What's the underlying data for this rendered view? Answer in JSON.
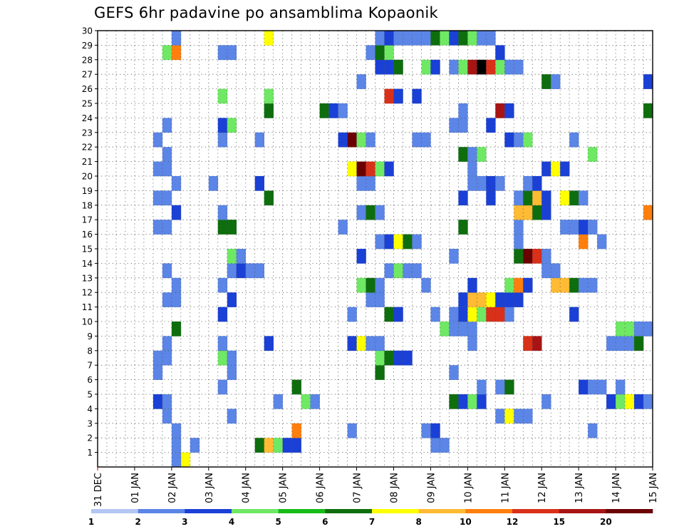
{
  "chart_data": {
    "type": "heatmap",
    "title": "GEFS 6hr padavine po ansamblima Kopaonik",
    "xlabel": "",
    "ylabel": "",
    "x_ticks": [
      "31 DEC",
      "01 JAN",
      "02 JAN",
      "03 JAN",
      "04 JAN",
      "05 JAN",
      "06 JAN",
      "07 JAN",
      "08 JAN",
      "09 JAN",
      "10 JAN",
      "11 JAN",
      "12 JAN",
      "13 JAN",
      "14 JAN",
      "15 JAN"
    ],
    "y_ticks": [
      1,
      2,
      3,
      4,
      5,
      6,
      7,
      8,
      9,
      10,
      11,
      12,
      13,
      14,
      15,
      16,
      17,
      18,
      19,
      20,
      21,
      22,
      23,
      24,
      25,
      26,
      27,
      28,
      29,
      30
    ],
    "xlim": [
      0,
      60
    ],
    "ylim": [
      0,
      30
    ],
    "time_step_hours": 6,
    "legend": {
      "placement": "bottom",
      "labels": [
        "1",
        "2",
        "3",
        "4",
        "5",
        "6",
        "7",
        "8",
        "10",
        "12",
        "15",
        "20"
      ],
      "colors": [
        "#b4c6f4",
        "#5b85e6",
        "#1a40d6",
        "#6fe864",
        "#17bc17",
        "#0e6e0e",
        "#ffff00",
        "#ffbb33",
        "#ff7f0e",
        "#d9301a",
        "#a81414",
        "#6b0000"
      ]
    },
    "cells": [
      [
        9,
        0,
        6
      ],
      [
        8,
        0,
        1
      ],
      [
        8,
        1,
        1
      ],
      [
        10,
        1,
        1
      ],
      [
        17,
        1,
        5
      ],
      [
        18,
        1,
        7
      ],
      [
        19,
        1,
        3
      ],
      [
        20,
        1,
        2
      ],
      [
        21,
        1,
        2
      ],
      [
        36,
        1,
        1
      ],
      [
        37,
        1,
        1
      ],
      [
        27,
        2,
        1
      ],
      [
        8,
        2,
        1
      ],
      [
        35,
        2,
        1
      ],
      [
        36,
        2,
        2
      ],
      [
        21,
        2,
        8
      ],
      [
        53,
        2,
        1
      ],
      [
        7,
        3,
        1
      ],
      [
        14,
        3,
        1
      ],
      [
        43,
        3,
        1
      ],
      [
        44,
        3,
        6
      ],
      [
        45,
        3,
        1
      ],
      [
        46,
        3,
        1
      ],
      [
        6,
        4,
        2
      ],
      [
        7,
        4,
        1
      ],
      [
        19,
        4,
        1
      ],
      [
        22,
        4,
        3
      ],
      [
        23,
        4,
        1
      ],
      [
        38,
        4,
        5
      ],
      [
        39,
        4,
        2
      ],
      [
        40,
        4,
        3
      ],
      [
        41,
        4,
        2
      ],
      [
        48,
        4,
        1
      ],
      [
        55,
        4,
        2
      ],
      [
        56,
        4,
        3
      ],
      [
        57,
        4,
        6
      ],
      [
        58,
        4,
        2
      ],
      [
        59,
        4,
        1
      ],
      [
        13,
        5,
        1
      ],
      [
        21,
        5,
        5
      ],
      [
        43,
        5,
        1
      ],
      [
        41,
        5,
        1
      ],
      [
        44,
        5,
        5
      ],
      [
        52,
        5,
        2
      ],
      [
        53,
        5,
        1
      ],
      [
        54,
        5,
        1
      ],
      [
        56,
        5,
        1
      ],
      [
        6,
        6,
        1
      ],
      [
        14,
        6,
        1
      ],
      [
        30,
        6,
        5
      ],
      [
        38,
        6,
        1
      ],
      [
        6,
        7,
        1
      ],
      [
        7,
        7,
        1
      ],
      [
        13,
        7,
        3
      ],
      [
        14,
        7,
        1
      ],
      [
        30,
        7,
        3
      ],
      [
        31,
        7,
        5
      ],
      [
        32,
        7,
        2
      ],
      [
        33,
        7,
        2
      ],
      [
        7,
        8,
        1
      ],
      [
        13,
        8,
        1
      ],
      [
        18,
        8,
        2
      ],
      [
        27,
        8,
        2
      ],
      [
        28,
        8,
        6
      ],
      [
        29,
        8,
        1
      ],
      [
        30,
        8,
        1
      ],
      [
        40,
        8,
        1
      ],
      [
        46,
        8,
        9
      ],
      [
        47,
        8,
        10
      ],
      [
        55,
        8,
        1
      ],
      [
        56,
        8,
        1
      ],
      [
        57,
        8,
        1
      ],
      [
        58,
        8,
        5
      ],
      [
        8,
        9,
        5
      ],
      [
        37,
        9,
        3
      ],
      [
        38,
        9,
        1
      ],
      [
        39,
        9,
        1
      ],
      [
        40,
        9,
        1
      ],
      [
        56,
        9,
        3
      ],
      [
        57,
        9,
        3
      ],
      [
        58,
        9,
        1
      ],
      [
        59,
        9,
        1
      ],
      [
        13,
        10,
        2
      ],
      [
        27,
        10,
        1
      ],
      [
        31,
        10,
        5
      ],
      [
        32,
        10,
        2
      ],
      [
        36,
        10,
        1
      ],
      [
        38,
        10,
        1
      ],
      [
        39,
        10,
        2
      ],
      [
        40,
        10,
        6
      ],
      [
        41,
        10,
        3
      ],
      [
        42,
        10,
        9
      ],
      [
        43,
        10,
        9
      ],
      [
        44,
        10,
        1
      ],
      [
        51,
        10,
        2
      ],
      [
        7,
        11,
        1
      ],
      [
        8,
        11,
        1
      ],
      [
        14,
        11,
        2
      ],
      [
        29,
        11,
        1
      ],
      [
        30,
        11,
        1
      ],
      [
        39,
        11,
        2
      ],
      [
        40,
        11,
        7
      ],
      [
        41,
        11,
        7
      ],
      [
        42,
        11,
        6
      ],
      [
        43,
        11,
        2
      ],
      [
        44,
        11,
        2
      ],
      [
        45,
        11,
        2
      ],
      [
        8,
        12,
        1
      ],
      [
        13,
        12,
        1
      ],
      [
        28,
        12,
        3
      ],
      [
        29,
        12,
        5
      ],
      [
        30,
        12,
        1
      ],
      [
        35,
        12,
        1
      ],
      [
        40,
        12,
        2
      ],
      [
        44,
        12,
        3
      ],
      [
        45,
        12,
        8
      ],
      [
        46,
        12,
        2
      ],
      [
        49,
        12,
        7
      ],
      [
        50,
        12,
        7
      ],
      [
        51,
        12,
        5
      ],
      [
        52,
        12,
        1
      ],
      [
        53,
        12,
        1
      ],
      [
        7,
        13,
        1
      ],
      [
        14,
        13,
        1
      ],
      [
        15,
        13,
        2
      ],
      [
        16,
        13,
        1
      ],
      [
        17,
        13,
        1
      ],
      [
        31,
        13,
        1
      ],
      [
        32,
        13,
        3
      ],
      [
        33,
        13,
        1
      ],
      [
        34,
        13,
        1
      ],
      [
        48,
        13,
        1
      ],
      [
        49,
        13,
        1
      ],
      [
        14,
        14,
        3
      ],
      [
        15,
        14,
        1
      ],
      [
        28,
        14,
        2
      ],
      [
        38,
        14,
        1
      ],
      [
        45,
        14,
        5
      ],
      [
        46,
        14,
        11
      ],
      [
        47,
        14,
        9
      ],
      [
        48,
        14,
        1
      ],
      [
        30,
        15,
        1
      ],
      [
        31,
        15,
        2
      ],
      [
        32,
        15,
        6
      ],
      [
        33,
        15,
        5
      ],
      [
        34,
        15,
        1
      ],
      [
        45,
        15,
        1
      ],
      [
        52,
        15,
        8
      ],
      [
        54,
        15,
        1
      ],
      [
        6,
        16,
        1
      ],
      [
        7,
        16,
        1
      ],
      [
        13,
        16,
        5
      ],
      [
        14,
        16,
        5
      ],
      [
        26,
        16,
        1
      ],
      [
        39,
        16,
        5
      ],
      [
        45,
        16,
        1
      ],
      [
        50,
        16,
        1
      ],
      [
        51,
        16,
        1
      ],
      [
        52,
        16,
        2
      ],
      [
        53,
        16,
        1
      ],
      [
        8,
        17,
        2
      ],
      [
        13,
        17,
        1
      ],
      [
        28,
        17,
        1
      ],
      [
        29,
        17,
        5
      ],
      [
        30,
        17,
        1
      ],
      [
        45,
        17,
        7
      ],
      [
        46,
        17,
        7
      ],
      [
        47,
        17,
        5
      ],
      [
        48,
        17,
        2
      ],
      [
        59,
        17,
        8
      ],
      [
        6,
        18,
        1
      ],
      [
        7,
        18,
        1
      ],
      [
        18,
        18,
        5
      ],
      [
        39,
        18,
        2
      ],
      [
        42,
        18,
        2
      ],
      [
        45,
        18,
        1
      ],
      [
        46,
        18,
        5
      ],
      [
        47,
        18,
        7
      ],
      [
        48,
        18,
        2
      ],
      [
        50,
        18,
        6
      ],
      [
        51,
        18,
        5
      ],
      [
        52,
        18,
        1
      ],
      [
        8,
        19,
        1
      ],
      [
        12,
        19,
        1
      ],
      [
        17,
        19,
        2
      ],
      [
        28,
        19,
        1
      ],
      [
        29,
        19,
        1
      ],
      [
        40,
        19,
        1
      ],
      [
        41,
        19,
        1
      ],
      [
        42,
        19,
        2
      ],
      [
        43,
        19,
        1
      ],
      [
        46,
        19,
        1
      ],
      [
        47,
        19,
        2
      ],
      [
        6,
        20,
        1
      ],
      [
        7,
        20,
        1
      ],
      [
        27,
        20,
        6
      ],
      [
        28,
        20,
        11
      ],
      [
        29,
        20,
        9
      ],
      [
        30,
        20,
        3
      ],
      [
        31,
        20,
        2
      ],
      [
        40,
        20,
        1
      ],
      [
        48,
        20,
        2
      ],
      [
        49,
        20,
        6
      ],
      [
        50,
        20,
        2
      ],
      [
        7,
        21,
        1
      ],
      [
        39,
        21,
        5
      ],
      [
        40,
        21,
        1
      ],
      [
        41,
        21,
        3
      ],
      [
        53,
        21,
        3
      ],
      [
        6,
        22,
        1
      ],
      [
        13,
        22,
        1
      ],
      [
        17,
        22,
        1
      ],
      [
        26,
        22,
        2
      ],
      [
        27,
        22,
        11
      ],
      [
        28,
        22,
        3
      ],
      [
        29,
        22,
        1
      ],
      [
        34,
        22,
        1
      ],
      [
        35,
        22,
        1
      ],
      [
        44,
        22,
        2
      ],
      [
        45,
        22,
        1
      ],
      [
        46,
        22,
        3
      ],
      [
        51,
        22,
        1
      ],
      [
        7,
        23,
        1
      ],
      [
        13,
        23,
        2
      ],
      [
        14,
        23,
        3
      ],
      [
        38,
        23,
        1
      ],
      [
        39,
        23,
        1
      ],
      [
        42,
        23,
        2
      ],
      [
        18,
        24,
        5
      ],
      [
        24,
        24,
        5
      ],
      [
        25,
        24,
        2
      ],
      [
        26,
        24,
        1
      ],
      [
        39,
        24,
        1
      ],
      [
        43,
        24,
        10
      ],
      [
        44,
        24,
        2
      ],
      [
        59,
        24,
        5
      ],
      [
        13,
        25,
        3
      ],
      [
        18,
        25,
        3
      ],
      [
        31,
        25,
        9
      ],
      [
        32,
        25,
        2
      ],
      [
        34,
        25,
        2
      ],
      [
        28,
        26,
        1
      ],
      [
        48,
        26,
        5
      ],
      [
        49,
        26,
        1
      ],
      [
        59,
        26,
        2
      ],
      [
        30,
        27,
        2
      ],
      [
        31,
        27,
        2
      ],
      [
        32,
        27,
        5
      ],
      [
        35,
        27,
        3
      ],
      [
        36,
        27,
        2
      ],
      [
        38,
        27,
        1
      ],
      [
        39,
        27,
        3
      ],
      [
        40,
        27,
        10
      ],
      [
        41,
        27,
        12
      ],
      [
        42,
        27,
        9
      ],
      [
        43,
        27,
        3
      ],
      [
        44,
        27,
        1
      ],
      [
        45,
        27,
        1
      ],
      [
        7,
        28,
        3
      ],
      [
        8,
        28,
        8
      ],
      [
        13,
        28,
        1
      ],
      [
        14,
        28,
        1
      ],
      [
        29,
        28,
        1
      ],
      [
        30,
        28,
        5
      ],
      [
        31,
        28,
        3
      ],
      [
        43,
        28,
        2
      ],
      [
        8,
        29,
        1
      ],
      [
        18,
        29,
        6
      ],
      [
        30,
        29,
        1
      ],
      [
        31,
        29,
        2
      ],
      [
        32,
        29,
        1
      ],
      [
        33,
        29,
        1
      ],
      [
        34,
        29,
        1
      ],
      [
        35,
        29,
        1
      ],
      [
        36,
        29,
        5
      ],
      [
        37,
        29,
        3
      ],
      [
        38,
        29,
        2
      ],
      [
        39,
        29,
        5
      ],
      [
        40,
        29,
        3
      ],
      [
        41,
        29,
        1
      ],
      [
        42,
        29,
        1
      ]
    ]
  }
}
